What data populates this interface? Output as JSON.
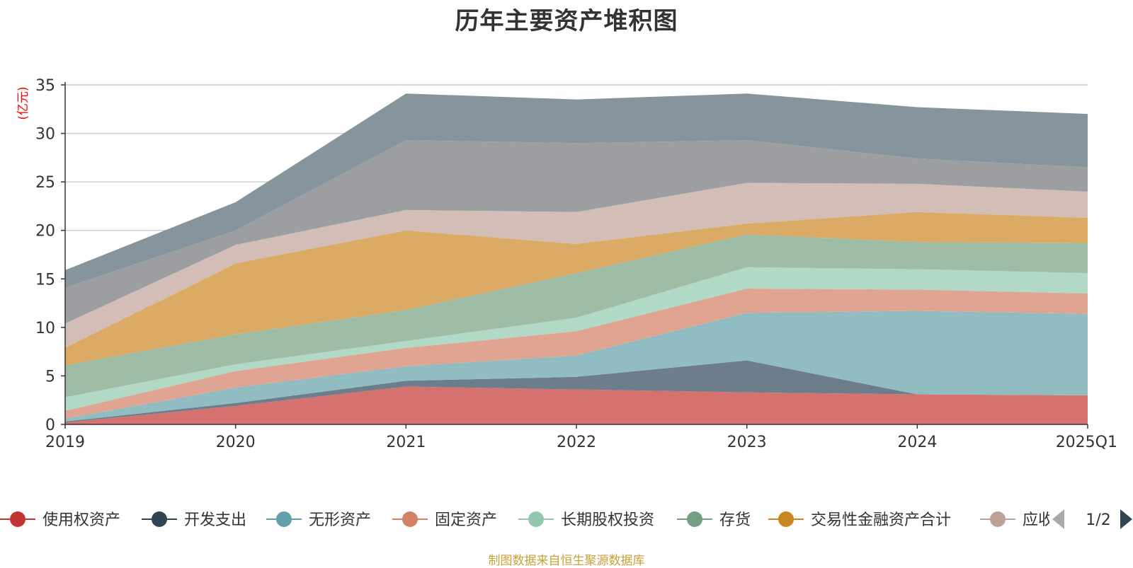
{
  "chart_data": {
    "type": "area",
    "stacked": true,
    "title": "历年主要资产堆积图",
    "unit_label": "(亿元)",
    "categories": [
      "2019",
      "2020",
      "2021",
      "2022",
      "2023",
      "2024",
      "2025Q1"
    ],
    "ylim": [
      0,
      35
    ],
    "yticks": [
      "0",
      "5",
      "10",
      "15",
      "20",
      "25",
      "30",
      "35"
    ],
    "grid": true,
    "legend_position": "bottom",
    "legend_page": "1/2",
    "series": [
      {
        "name": "使用权资产",
        "color": "#c23531",
        "fill": "#d5716e",
        "values": [
          0.2,
          1.9,
          3.9,
          3.6,
          3.3,
          3.1,
          3.0
        ]
      },
      {
        "name": "开发支出",
        "color": "#2f4554",
        "fill": "#6d7d89",
        "values": [
          0.1,
          0.3,
          0.6,
          1.3,
          3.3,
          0.0,
          0.0
        ]
      },
      {
        "name": "无形资产",
        "color": "#61a0a8",
        "fill": "#90bcc2",
        "values": [
          0.3,
          1.6,
          1.5,
          2.2,
          4.9,
          8.6,
          8.4
        ]
      },
      {
        "name": "固定资产",
        "color": "#d48265",
        "fill": "#e0a592",
        "values": [
          0.8,
          1.7,
          1.9,
          2.5,
          2.5,
          2.2,
          2.1
        ]
      },
      {
        "name": "长期股权投资",
        "color": "#91c7ae",
        "fill": "#b1d9c6",
        "values": [
          1.4,
          0.7,
          0.7,
          1.4,
          2.2,
          2.1,
          2.1
        ]
      },
      {
        "name": "存货",
        "color": "#749f83",
        "fill": "#9fbca7",
        "values": [
          3.3,
          3.1,
          3.2,
          4.6,
          3.4,
          2.8,
          3.1
        ]
      },
      {
        "name": "交易性金融资产合计",
        "color": "#ca8622",
        "fill": "#dbaa64",
        "values": [
          1.8,
          7.3,
          8.2,
          3.0,
          1.1,
          3.1,
          2.6
        ]
      },
      {
        "name": "应收账款",
        "color": "#bda29a",
        "fill": "#d2bdb7",
        "values": [
          2.5,
          1.9,
          2.1,
          3.3,
          4.2,
          2.9,
          2.7
        ]
      },
      {
        "name": "",
        "color": "#6e7074",
        "fill": "#9c9ea1",
        "values": [
          3.7,
          1.5,
          7.2,
          7.1,
          4.4,
          2.6,
          2.5
        ]
      },
      {
        "name": "",
        "color": "#546570",
        "fill": "#86949d",
        "values": [
          1.8,
          2.9,
          4.8,
          4.5,
          4.8,
          5.3,
          5.5
        ]
      }
    ],
    "legend_visible": [
      "使用权资产",
      "开发支出",
      "无形资产",
      "固定资产",
      "长期股权投资",
      "存货",
      "交易性金融资产合计",
      "应收"
    ]
  },
  "footer": "制图数据来自恒生聚源数据库"
}
